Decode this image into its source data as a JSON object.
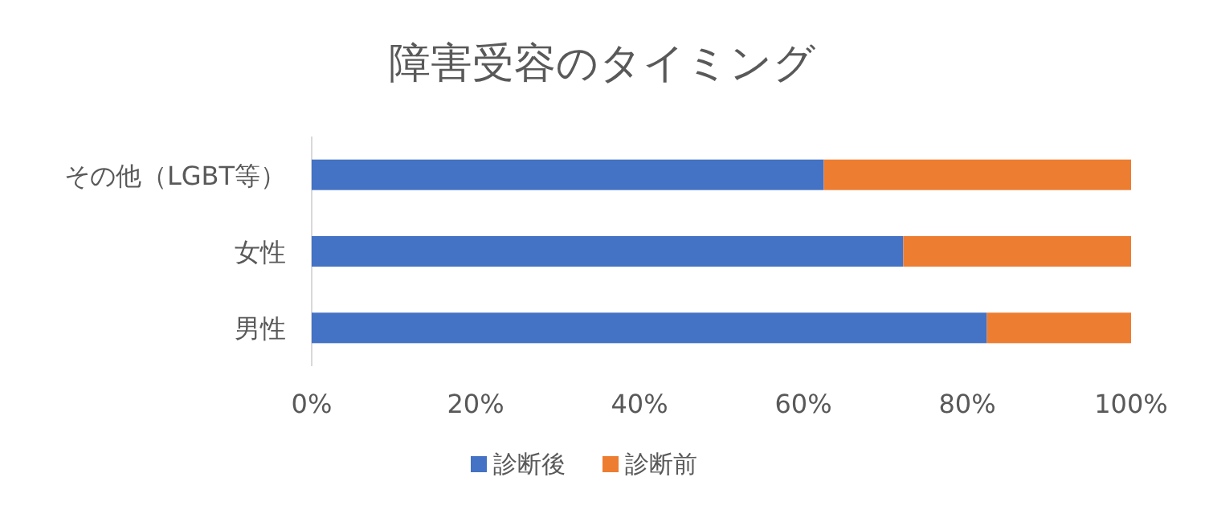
{
  "chart_data": {
    "type": "bar",
    "orientation": "horizontal",
    "stacked": true,
    "title": "障害受容のタイミング",
    "categories": [
      "その他（LGBT等）",
      "女性",
      "男性"
    ],
    "series": [
      {
        "name": "診断後",
        "color": "#4472c4",
        "values": [
          62.5,
          72.2,
          82.4
        ]
      },
      {
        "name": "診断前",
        "color": "#ed7d31",
        "values": [
          37.5,
          27.8,
          17.6
        ]
      }
    ],
    "xlim": [
      0,
      100
    ],
    "xticks": [
      {
        "value": 0,
        "label": "0%"
      },
      {
        "value": 20,
        "label": "20%"
      },
      {
        "value": 40,
        "label": "40%"
      },
      {
        "value": 60,
        "label": "60%"
      },
      {
        "value": 80,
        "label": "80%"
      },
      {
        "value": 100,
        "label": "100%"
      }
    ],
    "legend": "bottom"
  }
}
